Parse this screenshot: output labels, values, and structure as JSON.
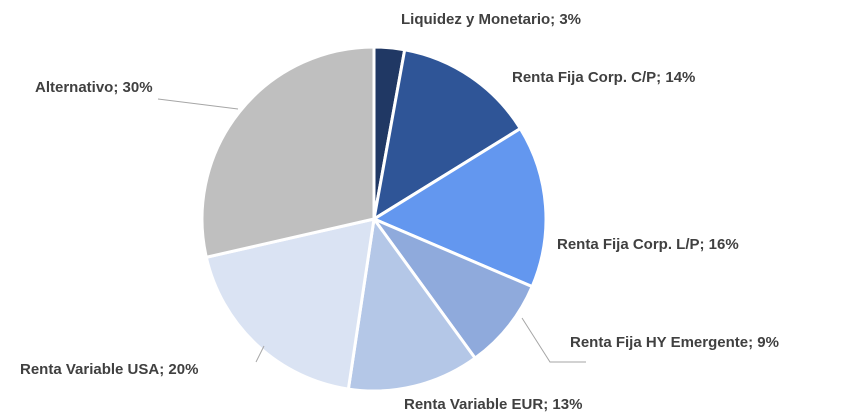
{
  "chart_data": {
    "type": "pie",
    "categories": [
      "Liquidez y Monetario",
      "Renta Fija Corp. C/P",
      "Renta Fija Corp. L/P",
      "Renta Fija HY Emergente",
      "Renta Variable EUR",
      "Renta Variable USA",
      "Alternativo"
    ],
    "values": [
      3,
      14,
      16,
      9,
      13,
      20,
      30
    ],
    "value_labels": [
      "Liquidez y Monetario; 3%",
      "Renta Fija Corp. C/P; 14%",
      "Renta Fija Corp. L/P; 16%",
      "Renta Fija HY Emergente; 9%",
      "Renta Variable EUR; 13%",
      "Renta Variable USA; 20%",
      "Alternativo; 30%"
    ],
    "colors": [
      "#203864",
      "#2f5597",
      "#6397ef",
      "#8faadc",
      "#b4c7e7",
      "#dae3f3",
      "#bfbfbf"
    ]
  }
}
